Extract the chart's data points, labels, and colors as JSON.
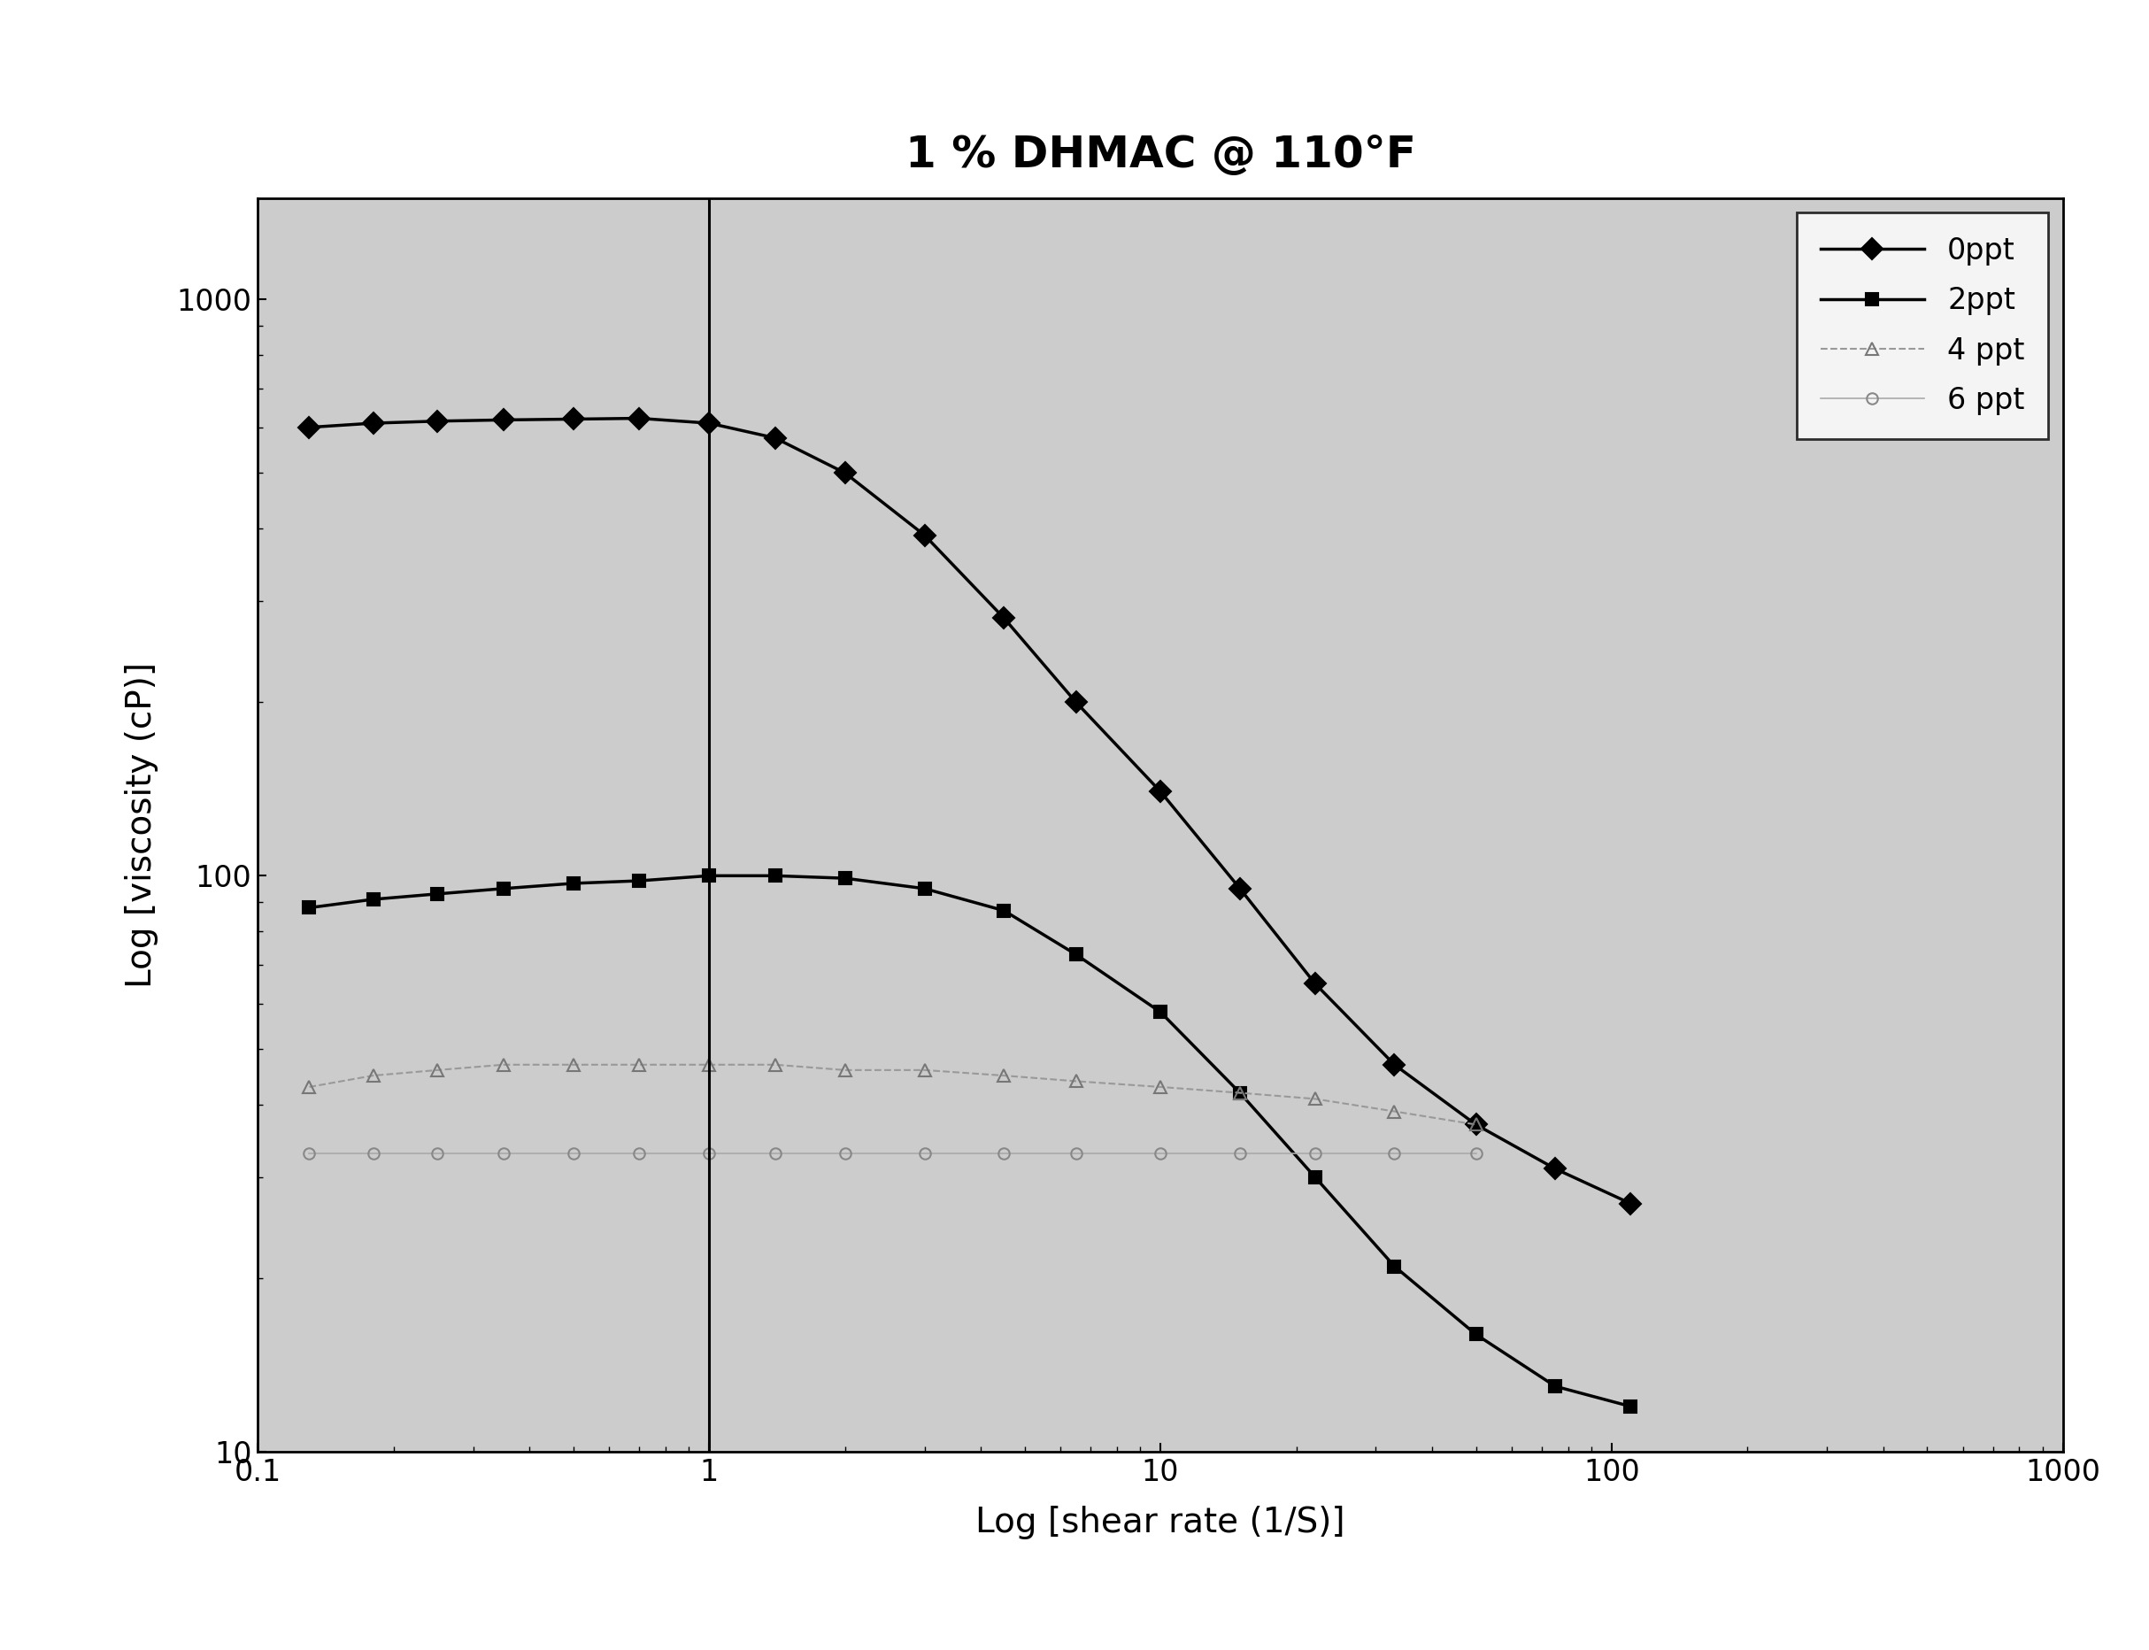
{
  "title": "1 % DHMAC @ 110°F",
  "xlabel": "Log [shear rate (1/S)]",
  "ylabel": "Log [viscosity (cP)]",
  "xlim": [
    0.1,
    1000
  ],
  "ylim": [
    10,
    1500
  ],
  "vline_x": 1.0,
  "series": [
    {
      "label": "0ppt",
      "marker": "D",
      "markersize": 12,
      "color": "#000000",
      "linewidth": 2.5,
      "linestyle": "-",
      "fillstyle": "full",
      "x": [
        0.13,
        0.18,
        0.25,
        0.35,
        0.5,
        0.7,
        1.0,
        1.4,
        2.0,
        3.0,
        4.5,
        6.5,
        10,
        15,
        22,
        33,
        50,
        75,
        110
      ],
      "y": [
        600,
        610,
        615,
        618,
        620,
        622,
        610,
        575,
        500,
        390,
        280,
        200,
        140,
        95,
        65,
        47,
        37,
        31,
        27
      ]
    },
    {
      "label": "2ppt",
      "marker": "s",
      "markersize": 10,
      "color": "#000000",
      "linewidth": 2.5,
      "linestyle": "-",
      "fillstyle": "full",
      "x": [
        0.13,
        0.18,
        0.25,
        0.35,
        0.5,
        0.7,
        1.0,
        1.4,
        2.0,
        3.0,
        4.5,
        6.5,
        10,
        15,
        22,
        33,
        50,
        75,
        110
      ],
      "y": [
        88,
        91,
        93,
        95,
        97,
        98,
        100,
        100,
        99,
        95,
        87,
        73,
        58,
        42,
        30,
        21,
        16,
        13,
        12
      ]
    },
    {
      "label": "4 ppt",
      "marker": "^",
      "markersize": 10,
      "color": "#999999",
      "linewidth": 1.5,
      "linestyle": "--",
      "fillstyle": "none",
      "markeredgecolor": "#777777",
      "x": [
        0.13,
        0.18,
        0.25,
        0.35,
        0.5,
        0.7,
        1.0,
        1.4,
        2.0,
        3.0,
        4.5,
        6.5,
        10,
        15,
        22,
        33,
        50
      ],
      "y": [
        43,
        45,
        46,
        47,
        47,
        47,
        47,
        47,
        46,
        46,
        45,
        44,
        43,
        42,
        41,
        39,
        37
      ]
    },
    {
      "label": "6 ppt",
      "marker": "o",
      "markersize": 9,
      "color": "#aaaaaa",
      "linewidth": 1.2,
      "linestyle": "-",
      "fillstyle": "none",
      "markeredgecolor": "#888888",
      "x": [
        0.13,
        0.18,
        0.25,
        0.35,
        0.5,
        0.7,
        1.0,
        1.4,
        2.0,
        3.0,
        4.5,
        6.5,
        10,
        15,
        22,
        33,
        50
      ],
      "y": [
        33,
        33,
        33,
        33,
        33,
        33,
        33,
        33,
        33,
        33,
        33,
        33,
        33,
        33,
        33,
        33,
        33
      ]
    }
  ],
  "outer_bg_color": "#ffffff",
  "plot_bg_color": "#cccccc",
  "title_fontsize": 36,
  "axis_label_fontsize": 28,
  "tick_fontsize": 24,
  "legend_fontsize": 24
}
